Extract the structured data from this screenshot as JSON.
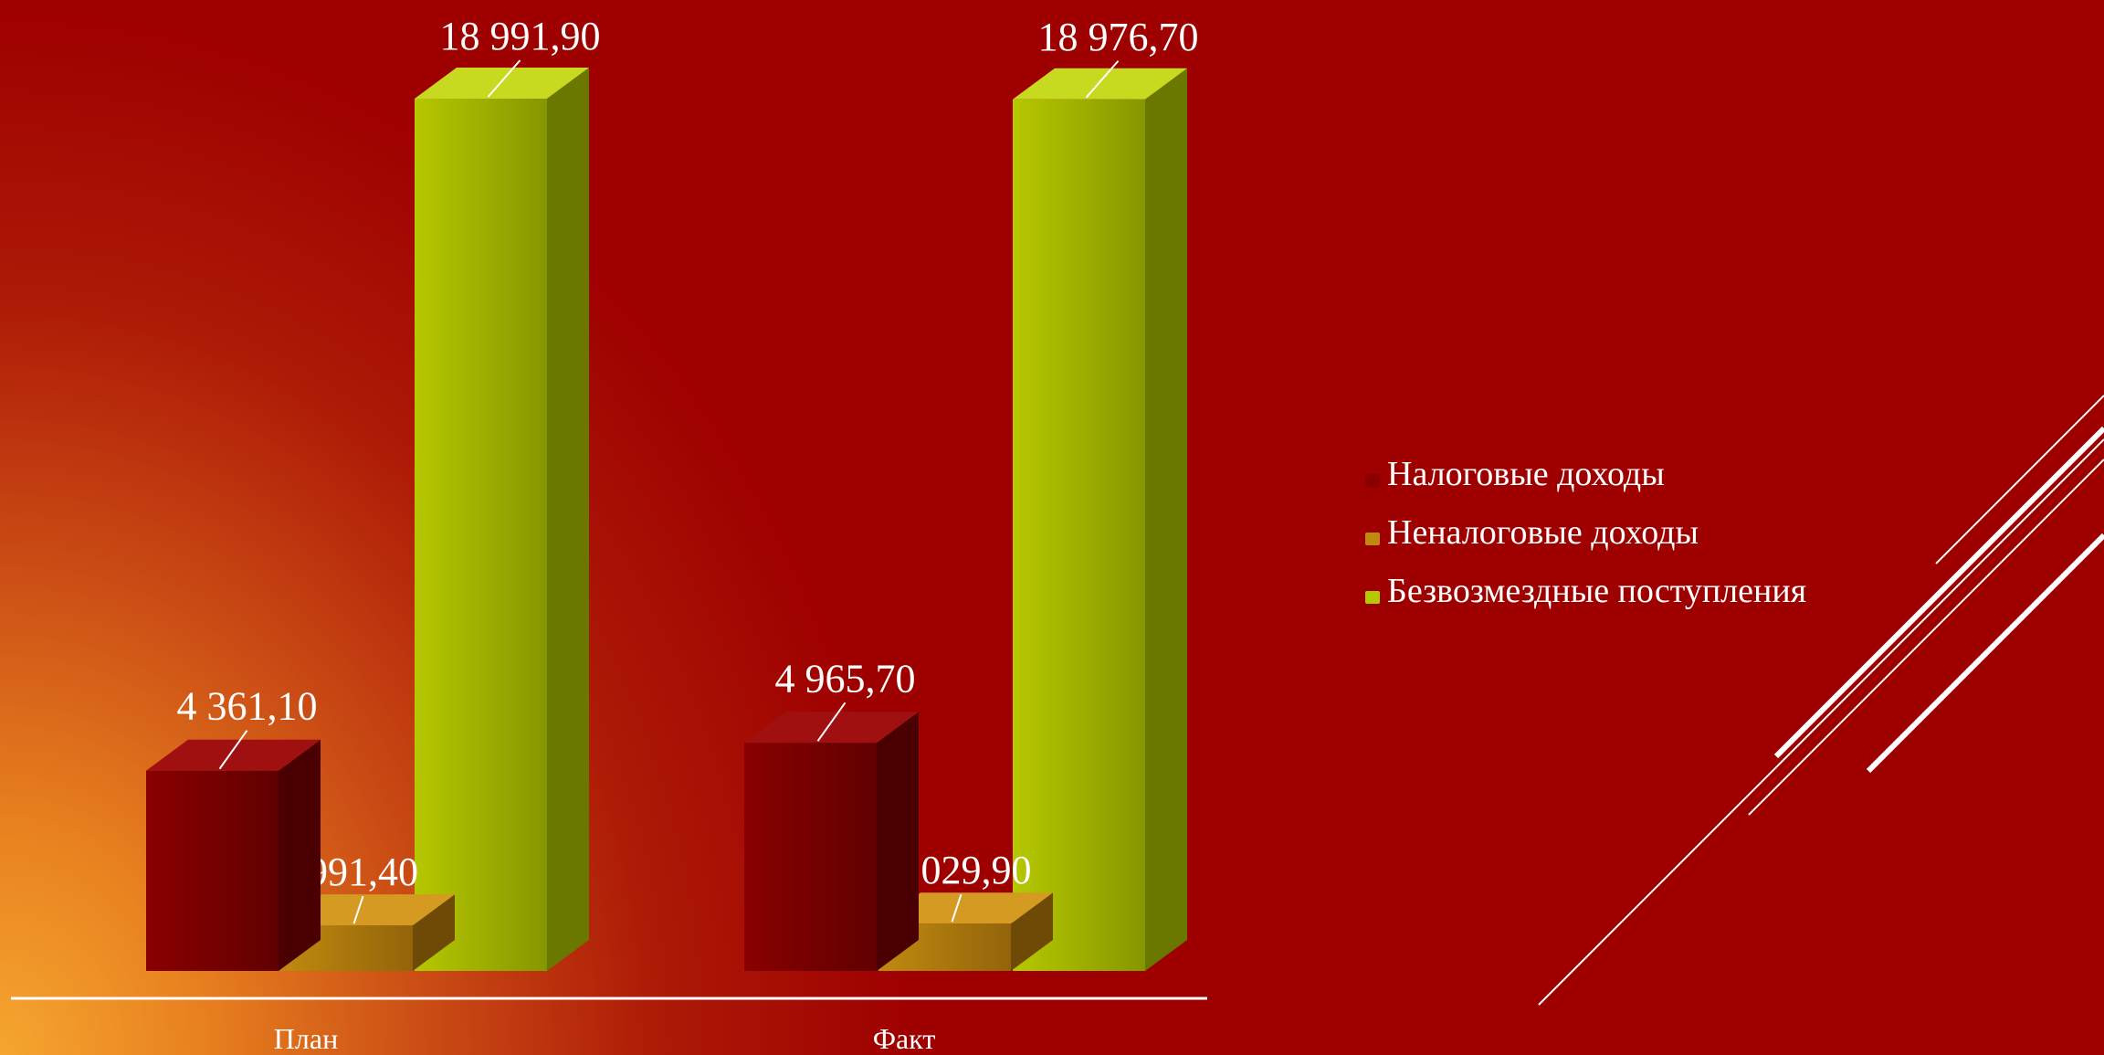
{
  "chart_data": {
    "type": "bar",
    "categories": [
      "План",
      "Факт"
    ],
    "series": [
      {
        "name": "Налоговые доходы",
        "values": [
          4361.1,
          4965.7
        ],
        "labels": [
          "4 361,10",
          "4 965,70"
        ],
        "color": "#7a0000"
      },
      {
        "name": "Неналоговые доходы",
        "values": [
          991.4,
          1029.9
        ],
        "labels": [
          "991,40",
          "1 029,90"
        ],
        "color": "#b07d0c"
      },
      {
        "name": "Безвозмездные поступления",
        "values": [
          18991.9,
          18976.7
        ],
        "labels": [
          "18 991,90",
          "18 976,70"
        ],
        "color": "#a5b800"
      }
    ],
    "ylim": [
      0,
      18991.9
    ],
    "grid": false,
    "legend_position": "right"
  },
  "colors": {
    "background": "#9e0000",
    "glow": "#f5a630",
    "text": "#ffffff"
  }
}
